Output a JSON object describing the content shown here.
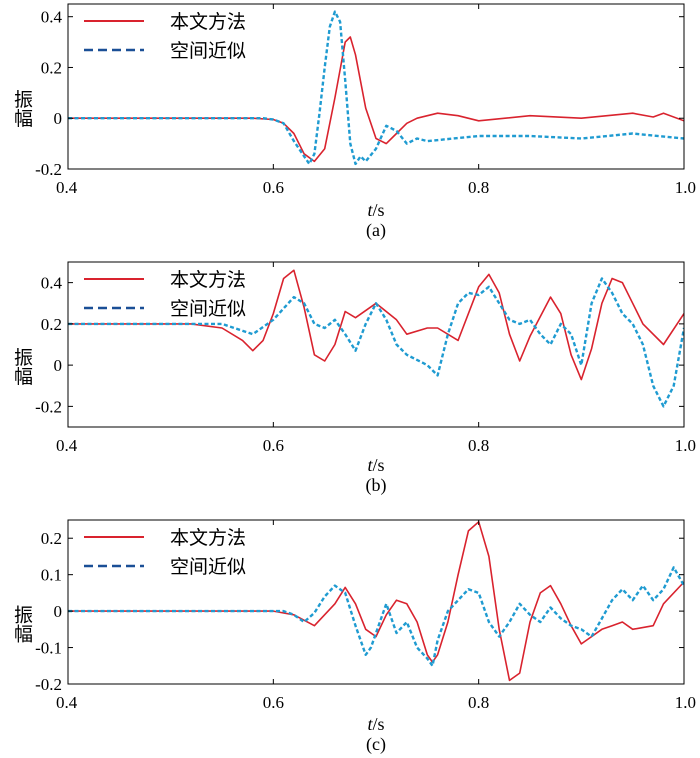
{
  "colors": {
    "method": "#d9232e",
    "approx": "#1f9bd1",
    "approx_legend": "#1a4f96",
    "axis": "#000000"
  },
  "chart_data": [
    {
      "type": "line",
      "panel_label": "(a)",
      "xlabel_italic": "t",
      "xlabel_unit": "/s",
      "ylabel": "振幅",
      "xlim": [
        0.4,
        1.0
      ],
      "ylim": [
        -0.2,
        0.45
      ],
      "xticks": [
        0.4,
        0.6,
        0.8,
        1.0
      ],
      "xtick_labels": [
        "0.4",
        "0.6",
        "0.8",
        "1.0"
      ],
      "yticks": [
        -0.2,
        0,
        0.2,
        0.4
      ],
      "ytick_labels": [
        "-0.2",
        "0",
        "0.2",
        "0.4"
      ],
      "legend": [
        "本文方法",
        "空间近似"
      ],
      "series": [
        {
          "name": "本文方法",
          "style": "solid",
          "x": [
            0.4,
            0.58,
            0.6,
            0.61,
            0.62,
            0.63,
            0.64,
            0.65,
            0.66,
            0.67,
            0.675,
            0.68,
            0.69,
            0.7,
            0.71,
            0.72,
            0.73,
            0.74,
            0.76,
            0.78,
            0.8,
            0.85,
            0.9,
            0.95,
            0.97,
            0.98,
            1.0
          ],
          "y": [
            0,
            0,
            -0.005,
            -0.02,
            -0.06,
            -0.14,
            -0.17,
            -0.12,
            0.08,
            0.3,
            0.32,
            0.25,
            0.04,
            -0.08,
            -0.1,
            -0.06,
            -0.02,
            0,
            0.02,
            0.01,
            -0.01,
            0.01,
            0,
            0.02,
            0.005,
            0.02,
            -0.01
          ]
        },
        {
          "name": "空间近似",
          "style": "dashed",
          "x": [
            0.4,
            0.59,
            0.6,
            0.61,
            0.62,
            0.63,
            0.635,
            0.64,
            0.645,
            0.65,
            0.655,
            0.66,
            0.665,
            0.67,
            0.675,
            0.68,
            0.685,
            0.69,
            0.7,
            0.71,
            0.72,
            0.73,
            0.74,
            0.75,
            0.8,
            0.85,
            0.9,
            0.95,
            1.0
          ],
          "y": [
            0,
            0,
            -0.005,
            -0.02,
            -0.09,
            -0.15,
            -0.18,
            -0.14,
            0.02,
            0.2,
            0.36,
            0.42,
            0.38,
            0.15,
            -0.1,
            -0.18,
            -0.15,
            -0.17,
            -0.12,
            -0.03,
            -0.05,
            -0.1,
            -0.08,
            -0.09,
            -0.07,
            -0.07,
            -0.08,
            -0.06,
            -0.08
          ]
        }
      ]
    },
    {
      "type": "line",
      "panel_label": "(b)",
      "xlabel_italic": "t",
      "xlabel_unit": "/s",
      "ylabel": "振幅",
      "xlim": [
        0.4,
        1.0
      ],
      "ylim": [
        -0.3,
        0.5
      ],
      "xticks": [
        0.4,
        0.6,
        0.8,
        1.0
      ],
      "xtick_labels": [
        "0.4",
        "0.6",
        "0.8",
        "1.0"
      ],
      "yticks": [
        -0.2,
        0,
        0.2,
        0.4
      ],
      "ytick_labels": [
        "-0.2",
        "0",
        "0.2",
        "0.4"
      ],
      "legend": [
        "本文方法",
        "空间近似"
      ],
      "series": [
        {
          "name": "本文方法",
          "style": "solid",
          "x": [
            0.4,
            0.52,
            0.55,
            0.57,
            0.58,
            0.59,
            0.6,
            0.61,
            0.62,
            0.63,
            0.64,
            0.65,
            0.66,
            0.67,
            0.68,
            0.7,
            0.72,
            0.73,
            0.75,
            0.76,
            0.78,
            0.8,
            0.81,
            0.82,
            0.83,
            0.84,
            0.85,
            0.87,
            0.88,
            0.89,
            0.9,
            0.91,
            0.92,
            0.93,
            0.94,
            0.95,
            0.96,
            0.98,
            1.0
          ],
          "y": [
            0.2,
            0.2,
            0.18,
            0.12,
            0.07,
            0.12,
            0.25,
            0.42,
            0.46,
            0.28,
            0.05,
            0.02,
            0.1,
            0.26,
            0.23,
            0.3,
            0.22,
            0.15,
            0.18,
            0.18,
            0.12,
            0.38,
            0.44,
            0.35,
            0.15,
            0.02,
            0.14,
            0.33,
            0.25,
            0.05,
            -0.07,
            0.08,
            0.3,
            0.42,
            0.4,
            0.3,
            0.2,
            0.1,
            0.25
          ]
        },
        {
          "name": "空间近似",
          "style": "dashed",
          "x": [
            0.4,
            0.55,
            0.58,
            0.6,
            0.62,
            0.63,
            0.64,
            0.65,
            0.66,
            0.67,
            0.68,
            0.69,
            0.7,
            0.71,
            0.72,
            0.73,
            0.75,
            0.76,
            0.77,
            0.78,
            0.79,
            0.8,
            0.81,
            0.82,
            0.83,
            0.84,
            0.85,
            0.86,
            0.87,
            0.88,
            0.89,
            0.9,
            0.91,
            0.92,
            0.93,
            0.94,
            0.95,
            0.96,
            0.97,
            0.98,
            0.99,
            1.0
          ],
          "y": [
            0.2,
            0.2,
            0.15,
            0.22,
            0.33,
            0.3,
            0.2,
            0.18,
            0.22,
            0.15,
            0.07,
            0.2,
            0.3,
            0.22,
            0.1,
            0.05,
            0,
            -0.05,
            0.15,
            0.3,
            0.35,
            0.34,
            0.38,
            0.3,
            0.22,
            0.2,
            0.22,
            0.15,
            0.1,
            0.2,
            0.15,
            0.0,
            0.3,
            0.42,
            0.35,
            0.25,
            0.2,
            0.1,
            -0.1,
            -0.2,
            -0.1,
            0.18
          ]
        }
      ]
    },
    {
      "type": "line",
      "panel_label": "(c)",
      "xlabel_italic": "t",
      "xlabel_unit": "/s",
      "ylabel": "振幅",
      "xlim": [
        0.4,
        1.0
      ],
      "ylim": [
        -0.2,
        0.25
      ],
      "xticks": [
        0.4,
        0.6,
        0.8,
        1.0
      ],
      "xtick_labels": [
        "0.4",
        "0.6",
        "0.8",
        "1.0"
      ],
      "yticks": [
        -0.2,
        -0.1,
        0,
        0.1,
        0.2
      ],
      "ytick_labels": [
        "-0.2",
        "-0.1",
        "0",
        "0.1",
        "0.2"
      ],
      "legend": [
        "本文方法",
        "空间近似"
      ],
      "series": [
        {
          "name": "本文方法",
          "style": "solid",
          "x": [
            0.4,
            0.6,
            0.62,
            0.64,
            0.66,
            0.67,
            0.68,
            0.69,
            0.7,
            0.71,
            0.72,
            0.73,
            0.74,
            0.75,
            0.755,
            0.76,
            0.77,
            0.78,
            0.79,
            0.8,
            0.81,
            0.82,
            0.83,
            0.84,
            0.85,
            0.86,
            0.87,
            0.88,
            0.89,
            0.9,
            0.91,
            0.92,
            0.93,
            0.94,
            0.95,
            0.97,
            0.98,
            1.0
          ],
          "y": [
            0,
            0,
            -0.01,
            -0.04,
            0.02,
            0.065,
            0.02,
            -0.05,
            -0.07,
            -0.01,
            0.03,
            0.02,
            -0.03,
            -0.12,
            -0.14,
            -0.12,
            -0.03,
            0.1,
            0.22,
            0.245,
            0.15,
            -0.05,
            -0.19,
            -0.17,
            -0.03,
            0.05,
            0.07,
            0.02,
            -0.04,
            -0.09,
            -0.07,
            -0.05,
            -0.04,
            -0.03,
            -0.05,
            -0.04,
            0.02,
            0.08
          ]
        },
        {
          "name": "空间近似",
          "style": "dashed",
          "x": [
            0.4,
            0.61,
            0.62,
            0.63,
            0.64,
            0.65,
            0.66,
            0.67,
            0.68,
            0.69,
            0.695,
            0.7,
            0.71,
            0.72,
            0.73,
            0.74,
            0.75,
            0.755,
            0.76,
            0.77,
            0.78,
            0.79,
            0.8,
            0.81,
            0.82,
            0.83,
            0.84,
            0.85,
            0.86,
            0.87,
            0.88,
            0.89,
            0.9,
            0.91,
            0.92,
            0.93,
            0.94,
            0.95,
            0.96,
            0.97,
            0.98,
            0.99,
            1.0
          ],
          "y": [
            0,
            0,
            -0.01,
            -0.03,
            -0.005,
            0.04,
            0.07,
            0.05,
            -0.04,
            -0.12,
            -0.1,
            -0.06,
            0.02,
            -0.06,
            -0.03,
            -0.1,
            -0.13,
            -0.15,
            -0.08,
            0.0,
            0.03,
            0.06,
            0.05,
            -0.03,
            -0.07,
            -0.03,
            0.02,
            -0.01,
            -0.03,
            0.01,
            -0.02,
            -0.04,
            -0.05,
            -0.07,
            -0.02,
            0.03,
            0.06,
            0.03,
            0.07,
            0.03,
            0.06,
            0.12,
            0.07
          ]
        }
      ]
    }
  ]
}
